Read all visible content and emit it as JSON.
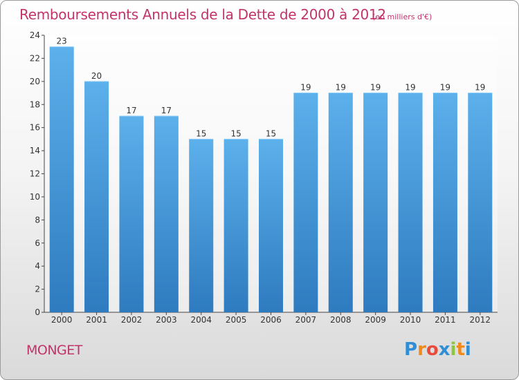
{
  "title": "Remboursements Annuels de la Dette de 2000 à 2012",
  "subtitle": "(en milliers d'€)",
  "place": "MONGET",
  "logo": {
    "text": "Proxiti",
    "letters": [
      "P",
      "r",
      "o",
      "x",
      "i",
      "t",
      "i"
    ],
    "colors": [
      "#2f8ed6",
      "#f08a1c",
      "#e94b3c",
      "#2f8ed6",
      "#8cc63f",
      "#f08a1c",
      "#2f8ed6"
    ]
  },
  "colors": {
    "bar_top": "#5cb0eb",
    "bar_bottom": "#2e7bbf",
    "accent": "#c2336a"
  },
  "chart_data": {
    "type": "bar",
    "title": "Remboursements Annuels de la Dette de 2000 à 2012",
    "xlabel": "",
    "ylabel": "",
    "categories": [
      "2000",
      "2001",
      "2002",
      "2003",
      "2004",
      "2005",
      "2006",
      "2007",
      "2008",
      "2009",
      "2010",
      "2011",
      "2012"
    ],
    "values": [
      23,
      20,
      17,
      17,
      15,
      15,
      15,
      19,
      19,
      19,
      19,
      19,
      19
    ],
    "value_labels": [
      "23",
      "20",
      "17",
      "17",
      "15",
      "15",
      "15",
      "19",
      "19",
      "19",
      "19",
      "19",
      "19"
    ],
    "ylim": [
      0,
      24
    ],
    "yticks": [
      0,
      2,
      4,
      6,
      8,
      10,
      12,
      14,
      16,
      18,
      20,
      22,
      24
    ],
    "ytick_labels": [
      "0",
      "2",
      "4",
      "6",
      "8",
      "10",
      "12",
      "14",
      "16",
      "18",
      "20",
      "22",
      "24"
    ],
    "grid": false,
    "legend": "none"
  }
}
